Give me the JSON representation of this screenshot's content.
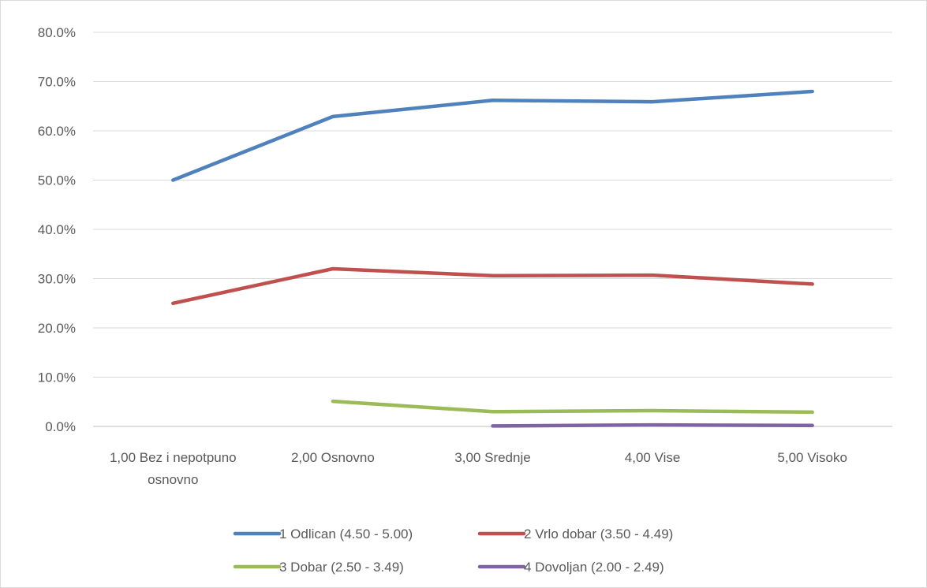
{
  "chart_data": {
    "type": "line",
    "title": "",
    "xlabel": "",
    "ylabel": "",
    "categories": [
      [
        "1,00 Bez i nepotpuno",
        "osnovno"
      ],
      [
        "2,00 Osnovno"
      ],
      [
        "3,00 Srednje"
      ],
      [
        "4,00 Vise"
      ],
      [
        "5,00 Visoko"
      ]
    ],
    "y_ticks": [
      "0.0%",
      "10.0%",
      "20.0%",
      "30.0%",
      "40.0%",
      "50.0%",
      "60.0%",
      "70.0%",
      "80.0%"
    ],
    "ylim": [
      0,
      80
    ],
    "grid": true,
    "legend_position": "bottom",
    "series": [
      {
        "name": "1 Odlican (4.50 - 5.00)",
        "color": "#4f81bd",
        "values": [
          50.0,
          62.9,
          66.2,
          65.9,
          68.0
        ]
      },
      {
        "name": "2 Vrlo dobar (3.50 - 4.49)",
        "color": "#c0504d",
        "values": [
          25.0,
          32.0,
          30.6,
          30.7,
          28.9
        ]
      },
      {
        "name": "3 Dobar (2.50 - 3.49)",
        "color": "#9bbb59",
        "values": [
          null,
          5.1,
          3.0,
          3.2,
          2.9
        ]
      },
      {
        "name": "4 Dovoljan (2.00 - 2.49)",
        "color": "#8064a2",
        "values": [
          null,
          null,
          0.1,
          0.3,
          0.2
        ]
      }
    ]
  }
}
